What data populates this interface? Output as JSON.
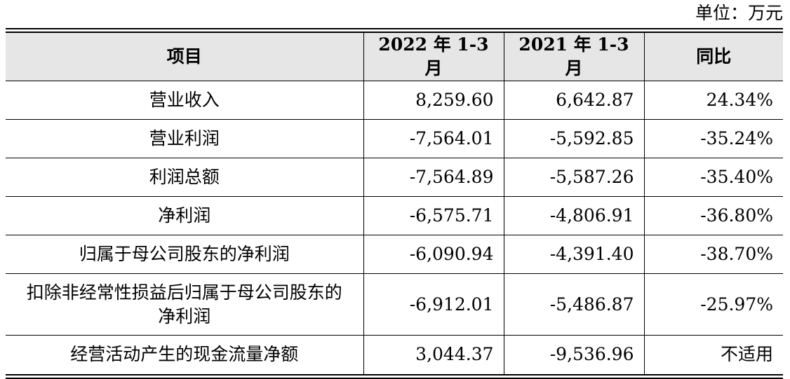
{
  "unit_label": "单位：万元",
  "table": {
    "headers": {
      "item": "项目",
      "period_2022": "2022 年 1-3 月",
      "period_2021": "2021 年 1-3 月",
      "yoy": "同比"
    },
    "rows": [
      {
        "item": "营业收入",
        "v2022": "8,259.60",
        "v2021": "6,642.87",
        "yoy": "24.34%"
      },
      {
        "item": "营业利润",
        "v2022": "-7,564.01",
        "v2021": "-5,592.85",
        "yoy": "-35.24%"
      },
      {
        "item": "利润总额",
        "v2022": "-7,564.89",
        "v2021": "-5,587.26",
        "yoy": "-35.40%"
      },
      {
        "item": "净利润",
        "v2022": "-6,575.71",
        "v2021": "-4,806.91",
        "yoy": "-36.80%"
      },
      {
        "item": "归属于母公司股东的净利润",
        "v2022": "-6,090.94",
        "v2021": "-4,391.40",
        "yoy": "-38.70%"
      },
      {
        "item": "扣除非经常性损益后归属于母公司股东的净利润",
        "v2022": "-6,912.01",
        "v2021": "-5,486.87",
        "yoy": "-25.97%"
      },
      {
        "item": "经营活动产生的现金流量净额",
        "v2022": "3,044.37",
        "v2021": "-9,536.96",
        "yoy": "不适用"
      }
    ]
  }
}
